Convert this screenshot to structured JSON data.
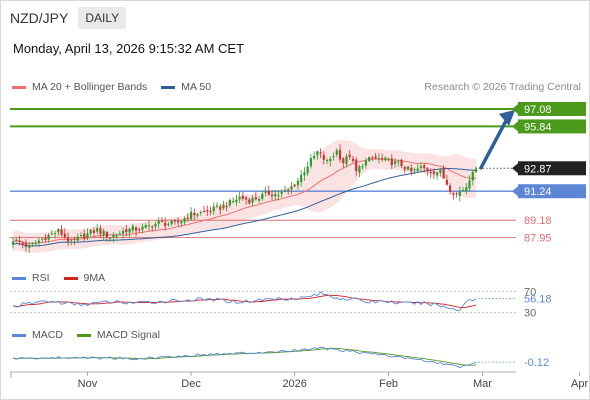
{
  "header": {
    "pair": "NZD/JPY",
    "period": "DAILY"
  },
  "datetime": "Monday, April 13, 2026 9:15:32 AM CET",
  "credit": "Research © 2026 Trading Central",
  "legends": {
    "price": [
      {
        "label": "MA 20 + Bollinger Bands",
        "color": "#f07070"
      },
      {
        "label": "MA 50",
        "color": "#2f5f9a"
      }
    ],
    "rsi": [
      {
        "label": "RSI",
        "color": "#5b86d6"
      },
      {
        "label": "9MA",
        "color": "#d02020"
      }
    ],
    "macd": [
      {
        "label": "MACD",
        "color": "#5b86d6"
      },
      {
        "label": "MACD Signal",
        "color": "#4c9a1c"
      }
    ]
  },
  "colors": {
    "up": "#2a9d2a",
    "down": "#d03030",
    "band": "#fbd9d9",
    "ma20": "#f07070",
    "ma50": "#2f5f9a",
    "resistance": "#4c9a1c",
    "support_main": "#5b86d6",
    "support_minor": "#e06e6e",
    "arrow": "#2f5f9a",
    "current": "#222222"
  },
  "chart_data": {
    "type": "candlestick",
    "x_ticks": [
      "Nov",
      "Dec",
      "2026",
      "Feb",
      "Mar",
      "Apr"
    ],
    "price": {
      "ylim": [
        86.5,
        98.0
      ],
      "current": 92.87,
      "levels": [
        {
          "value": 97.08,
          "kind": "resistance",
          "label": "97.08"
        },
        {
          "value": 95.84,
          "kind": "resistance",
          "label": "95.84"
        },
        {
          "value": 91.24,
          "kind": "support-main",
          "label": "91.24"
        },
        {
          "value": 89.18,
          "kind": "support",
          "label": "89.18"
        },
        {
          "value": 87.95,
          "kind": "support",
          "label": "87.95"
        }
      ],
      "target_arrow": {
        "from": 92.9,
        "to": 96.8
      },
      "close_anchors": [
        [
          0,
          87.8
        ],
        [
          5,
          87.3
        ],
        [
          10,
          88.0
        ],
        [
          14,
          88.4
        ],
        [
          18,
          87.6
        ],
        [
          22,
          88.1
        ],
        [
          26,
          88.5
        ],
        [
          30,
          88.0
        ],
        [
          35,
          88.5
        ],
        [
          40,
          88.6
        ],
        [
          45,
          89.0
        ],
        [
          50,
          88.9
        ],
        [
          55,
          89.6
        ],
        [
          60,
          89.8
        ],
        [
          64,
          90.1
        ],
        [
          67,
          90.4
        ],
        [
          70,
          90.8
        ],
        [
          73,
          90.6
        ],
        [
          76,
          90.8
        ],
        [
          79,
          91.1
        ],
        [
          82,
          91.0
        ],
        [
          85,
          91.3
        ],
        [
          88,
          92.0
        ],
        [
          91,
          93.1
        ],
        [
          94,
          94.0
        ],
        [
          97,
          93.3
        ],
        [
          100,
          94.1
        ],
        [
          102,
          93.3
        ],
        [
          104,
          93.8
        ],
        [
          106,
          92.6
        ],
        [
          108,
          93.2
        ],
        [
          111,
          93.6
        ],
        [
          114,
          93.5
        ],
        [
          117,
          93.3
        ],
        [
          120,
          93.1
        ],
        [
          123,
          92.6
        ],
        [
          126,
          92.9
        ],
        [
          129,
          92.7
        ],
        [
          132,
          92.6
        ],
        [
          135,
          91.4
        ],
        [
          137,
          91.0
        ],
        [
          140,
          91.6
        ],
        [
          142,
          92.8
        ],
        [
          143,
          92.87
        ]
      ]
    },
    "rsi": {
      "ticks": [
        70,
        30
      ],
      "value": 56.18,
      "ylim": [
        20,
        80
      ],
      "anchors": [
        [
          0,
          42
        ],
        [
          10,
          52
        ],
        [
          20,
          45
        ],
        [
          30,
          50
        ],
        [
          40,
          48
        ],
        [
          50,
          53
        ],
        [
          60,
          55
        ],
        [
          70,
          50
        ],
        [
          80,
          56
        ],
        [
          90,
          58
        ],
        [
          95,
          66
        ],
        [
          100,
          58
        ],
        [
          105,
          55
        ],
        [
          110,
          50
        ],
        [
          115,
          52
        ],
        [
          120,
          47
        ],
        [
          125,
          48
        ],
        [
          130,
          46
        ],
        [
          135,
          38
        ],
        [
          138,
          36
        ],
        [
          140,
          52
        ],
        [
          143,
          56
        ]
      ]
    },
    "macd": {
      "value": -0.12,
      "anchors": [
        [
          0,
          0.05
        ],
        [
          20,
          0.1
        ],
        [
          40,
          0.05
        ],
        [
          60,
          0.25
        ],
        [
          80,
          0.35
        ],
        [
          95,
          0.55
        ],
        [
          110,
          0.3
        ],
        [
          125,
          0.0
        ],
        [
          138,
          -0.35
        ],
        [
          143,
          -0.12
        ]
      ]
    }
  }
}
